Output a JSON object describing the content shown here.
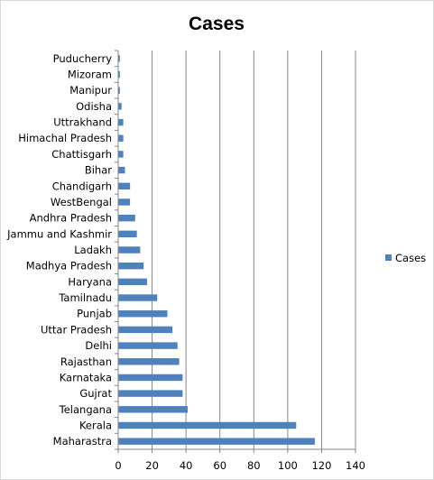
{
  "chart_data": {
    "type": "bar",
    "orientation": "horizontal",
    "title": "Cases",
    "xlabel": "",
    "ylabel": "",
    "xlim": [
      0,
      140
    ],
    "x_ticks": [
      0,
      20,
      40,
      60,
      80,
      100,
      120,
      140
    ],
    "grid": "vertical major gridlines",
    "legend_position": "right",
    "categories": [
      "Maharastra",
      "Kerala",
      "Telangana",
      "Gujrat",
      "Karnataka",
      "Rajasthan",
      "Delhi",
      "Uttar Pradesh",
      "Punjab",
      "Tamilnadu",
      "Haryana",
      "Madhya Pradesh",
      "Ladakh",
      "Jammu and Kashmir",
      "Andhra Pradesh",
      "WestBengal",
      "Chandigarh",
      "Bihar",
      "Chattisgarh",
      "Himachal Pradesh",
      "Uttrakhand",
      "Odisha",
      "Manipur",
      "Mizoram",
      "Puducherry"
    ],
    "series": [
      {
        "name": "Cases",
        "color": "#4f81bd",
        "values": [
          116,
          105,
          41,
          38,
          38,
          36,
          35,
          32,
          29,
          23,
          17,
          15,
          13,
          11,
          10,
          7,
          7,
          4,
          3,
          3,
          3,
          2,
          1,
          1,
          1
        ]
      }
    ]
  }
}
